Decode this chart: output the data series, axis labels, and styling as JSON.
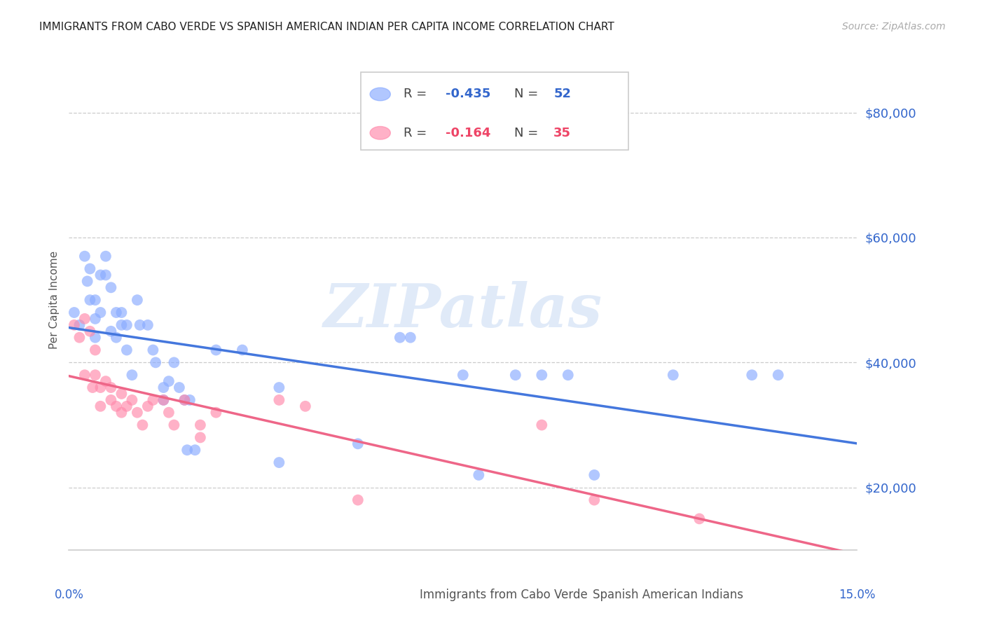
{
  "title": "IMMIGRANTS FROM CABO VERDE VS SPANISH AMERICAN INDIAN PER CAPITA INCOME CORRELATION CHART",
  "source": "Source: ZipAtlas.com",
  "ylabel": "Per Capita Income",
  "legend_blue_label": "Immigrants from Cabo Verde",
  "legend_pink_label": "Spanish American Indians",
  "yticks": [
    20000,
    40000,
    60000,
    80000
  ],
  "ytick_labels": [
    "$20,000",
    "$40,000",
    "$60,000",
    "$80,000"
  ],
  "xlim": [
    0.0,
    0.15
  ],
  "ylim": [
    10000,
    90000
  ],
  "blue_color": "#88aaff",
  "pink_color": "#ff88aa",
  "blue_line_color": "#4477dd",
  "pink_line_color": "#ee6688",
  "blue_r": "-0.435",
  "blue_n": "52",
  "pink_r": "-0.164",
  "pink_n": "35",
  "blue_scatter_x": [
    0.001,
    0.002,
    0.003,
    0.0035,
    0.004,
    0.004,
    0.005,
    0.005,
    0.005,
    0.006,
    0.006,
    0.007,
    0.007,
    0.008,
    0.008,
    0.009,
    0.009,
    0.01,
    0.01,
    0.011,
    0.011,
    0.012,
    0.013,
    0.0135,
    0.015,
    0.016,
    0.0165,
    0.018,
    0.018,
    0.019,
    0.02,
    0.021,
    0.022,
    0.0225,
    0.023,
    0.024,
    0.028,
    0.033,
    0.04,
    0.04,
    0.055,
    0.063,
    0.065,
    0.075,
    0.078,
    0.085,
    0.09,
    0.095,
    0.1,
    0.115,
    0.13,
    0.135
  ],
  "blue_scatter_y": [
    48000,
    46000,
    57000,
    53000,
    55000,
    50000,
    50000,
    47000,
    44000,
    54000,
    48000,
    57000,
    54000,
    52000,
    45000,
    48000,
    44000,
    48000,
    46000,
    46000,
    42000,
    38000,
    50000,
    46000,
    46000,
    42000,
    40000,
    36000,
    34000,
    37000,
    40000,
    36000,
    34000,
    26000,
    34000,
    26000,
    42000,
    42000,
    36000,
    24000,
    27000,
    44000,
    44000,
    38000,
    22000,
    38000,
    38000,
    38000,
    22000,
    38000,
    38000,
    38000
  ],
  "pink_scatter_x": [
    0.001,
    0.002,
    0.003,
    0.003,
    0.004,
    0.0045,
    0.005,
    0.005,
    0.006,
    0.006,
    0.007,
    0.008,
    0.008,
    0.009,
    0.01,
    0.01,
    0.011,
    0.012,
    0.013,
    0.014,
    0.015,
    0.016,
    0.018,
    0.019,
    0.02,
    0.022,
    0.025,
    0.025,
    0.028,
    0.04,
    0.045,
    0.055,
    0.09,
    0.1,
    0.12
  ],
  "pink_scatter_y": [
    46000,
    44000,
    47000,
    38000,
    45000,
    36000,
    42000,
    38000,
    36000,
    33000,
    37000,
    36000,
    34000,
    33000,
    35000,
    32000,
    33000,
    34000,
    32000,
    30000,
    33000,
    34000,
    34000,
    32000,
    30000,
    34000,
    30000,
    28000,
    32000,
    34000,
    33000,
    18000,
    30000,
    18000,
    15000
  ],
  "watermark": "ZIPatlas",
  "bg_color": "#ffffff",
  "grid_color": "#cccccc",
  "label_color_blue": "#3366cc",
  "label_color_pink": "#ee4466",
  "axis_label_color": "#555555",
  "tick_label_color": "#3366cc"
}
